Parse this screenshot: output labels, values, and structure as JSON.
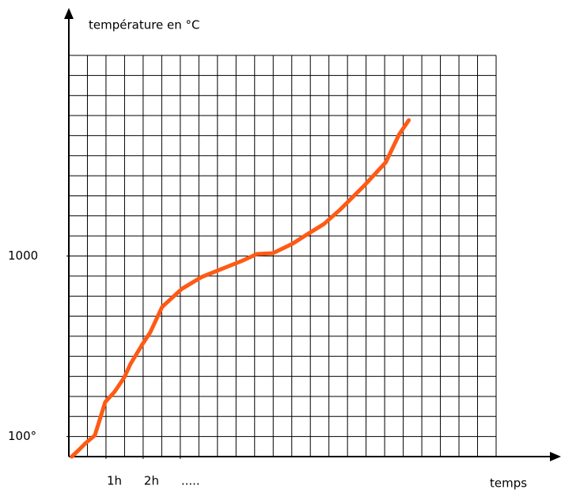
{
  "chart_data": {
    "type": "line",
    "y_label": "température en °C",
    "x_label": "temps",
    "xlim": [
      0,
      11.5
    ],
    "ylim": [
      0,
      2000
    ],
    "xticks": [
      {
        "value": 1,
        "label": "1h"
      },
      {
        "value": 2,
        "label": "2h"
      },
      {
        "value": 3,
        "label": "....."
      }
    ],
    "yticks": [
      {
        "value": 100,
        "label": "100°"
      },
      {
        "value": 1000,
        "label": "1000"
      }
    ],
    "grid": true,
    "minor_grid": {
      "x": 0.5,
      "y": 100
    },
    "series": [
      {
        "color": "#ff5a14",
        "x": [
          0.08,
          0.28,
          0.45,
          0.7,
          0.98,
          1.23,
          1.49,
          1.66,
          1.98,
          2.19,
          2.51,
          3.04,
          3.57,
          4.11,
          4.64,
          5.06,
          5.49,
          6.02,
          6.45,
          6.87,
          7.3,
          7.94,
          8.53,
          8.89,
          9.15
        ],
        "values": [
          0,
          35,
          67,
          106,
          272,
          323,
          394,
          462,
          560,
          619,
          746,
          836,
          895,
          935,
          974,
          1010,
          1014,
          1061,
          1112,
          1160,
          1231,
          1349,
          1467,
          1606,
          1677
        ]
      }
    ]
  }
}
